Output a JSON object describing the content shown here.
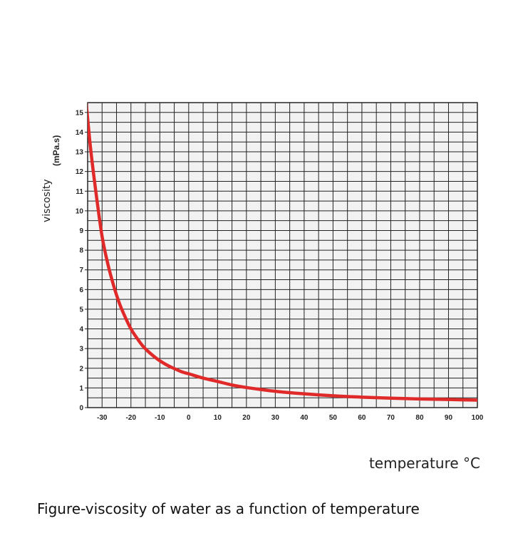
{
  "chart_data": {
    "type": "line",
    "title": "",
    "xlabel": "temperature °C",
    "ylabel": "viscosity",
    "ylabel_unit": "(mPa.s)",
    "xlim": [
      -35,
      100
    ],
    "ylim": [
      0,
      15.5
    ],
    "x_ticks": [
      -30,
      -20,
      -10,
      0,
      10,
      20,
      30,
      40,
      50,
      60,
      70,
      80,
      90,
      100
    ],
    "x_tick_labels": [
      "-30",
      "-20",
      "-10",
      "0",
      "10",
      "20",
      "30",
      "40",
      "50",
      "60",
      "70",
      "80",
      "90",
      "100"
    ],
    "y_ticks": [
      0,
      1,
      2,
      3,
      4,
      5,
      6,
      7,
      8,
      9,
      10,
      11,
      12,
      13,
      14,
      15
    ],
    "y_tick_labels": [
      "0",
      "1",
      "2",
      "3",
      "4",
      "5",
      "6",
      "7",
      "8",
      "9",
      "10",
      "11",
      "12",
      "13",
      "14",
      "15"
    ],
    "grid": true,
    "series": [
      {
        "color": "#e02a2a",
        "x": [
          -35.5,
          -34,
          -32,
          -30,
          -28,
          -26,
          -24,
          -22,
          -20,
          -18,
          -16,
          -14,
          -12,
          -10,
          -8,
          -6,
          -4,
          -2,
          0,
          5,
          10,
          15,
          20,
          25,
          30,
          40,
          50,
          60,
          70,
          80,
          90,
          100
        ],
        "y": [
          15.5,
          13.2,
          10.8,
          8.7,
          7.3,
          6.2,
          5.3,
          4.6,
          4.0,
          3.55,
          3.15,
          2.85,
          2.6,
          2.38,
          2.2,
          2.05,
          1.92,
          1.8,
          1.72,
          1.5,
          1.33,
          1.15,
          1.02,
          0.92,
          0.83,
          0.7,
          0.6,
          0.53,
          0.48,
          0.44,
          0.41,
          0.38
        ]
      }
    ]
  },
  "caption": "Figure-viscosity of water as a function of temperature"
}
